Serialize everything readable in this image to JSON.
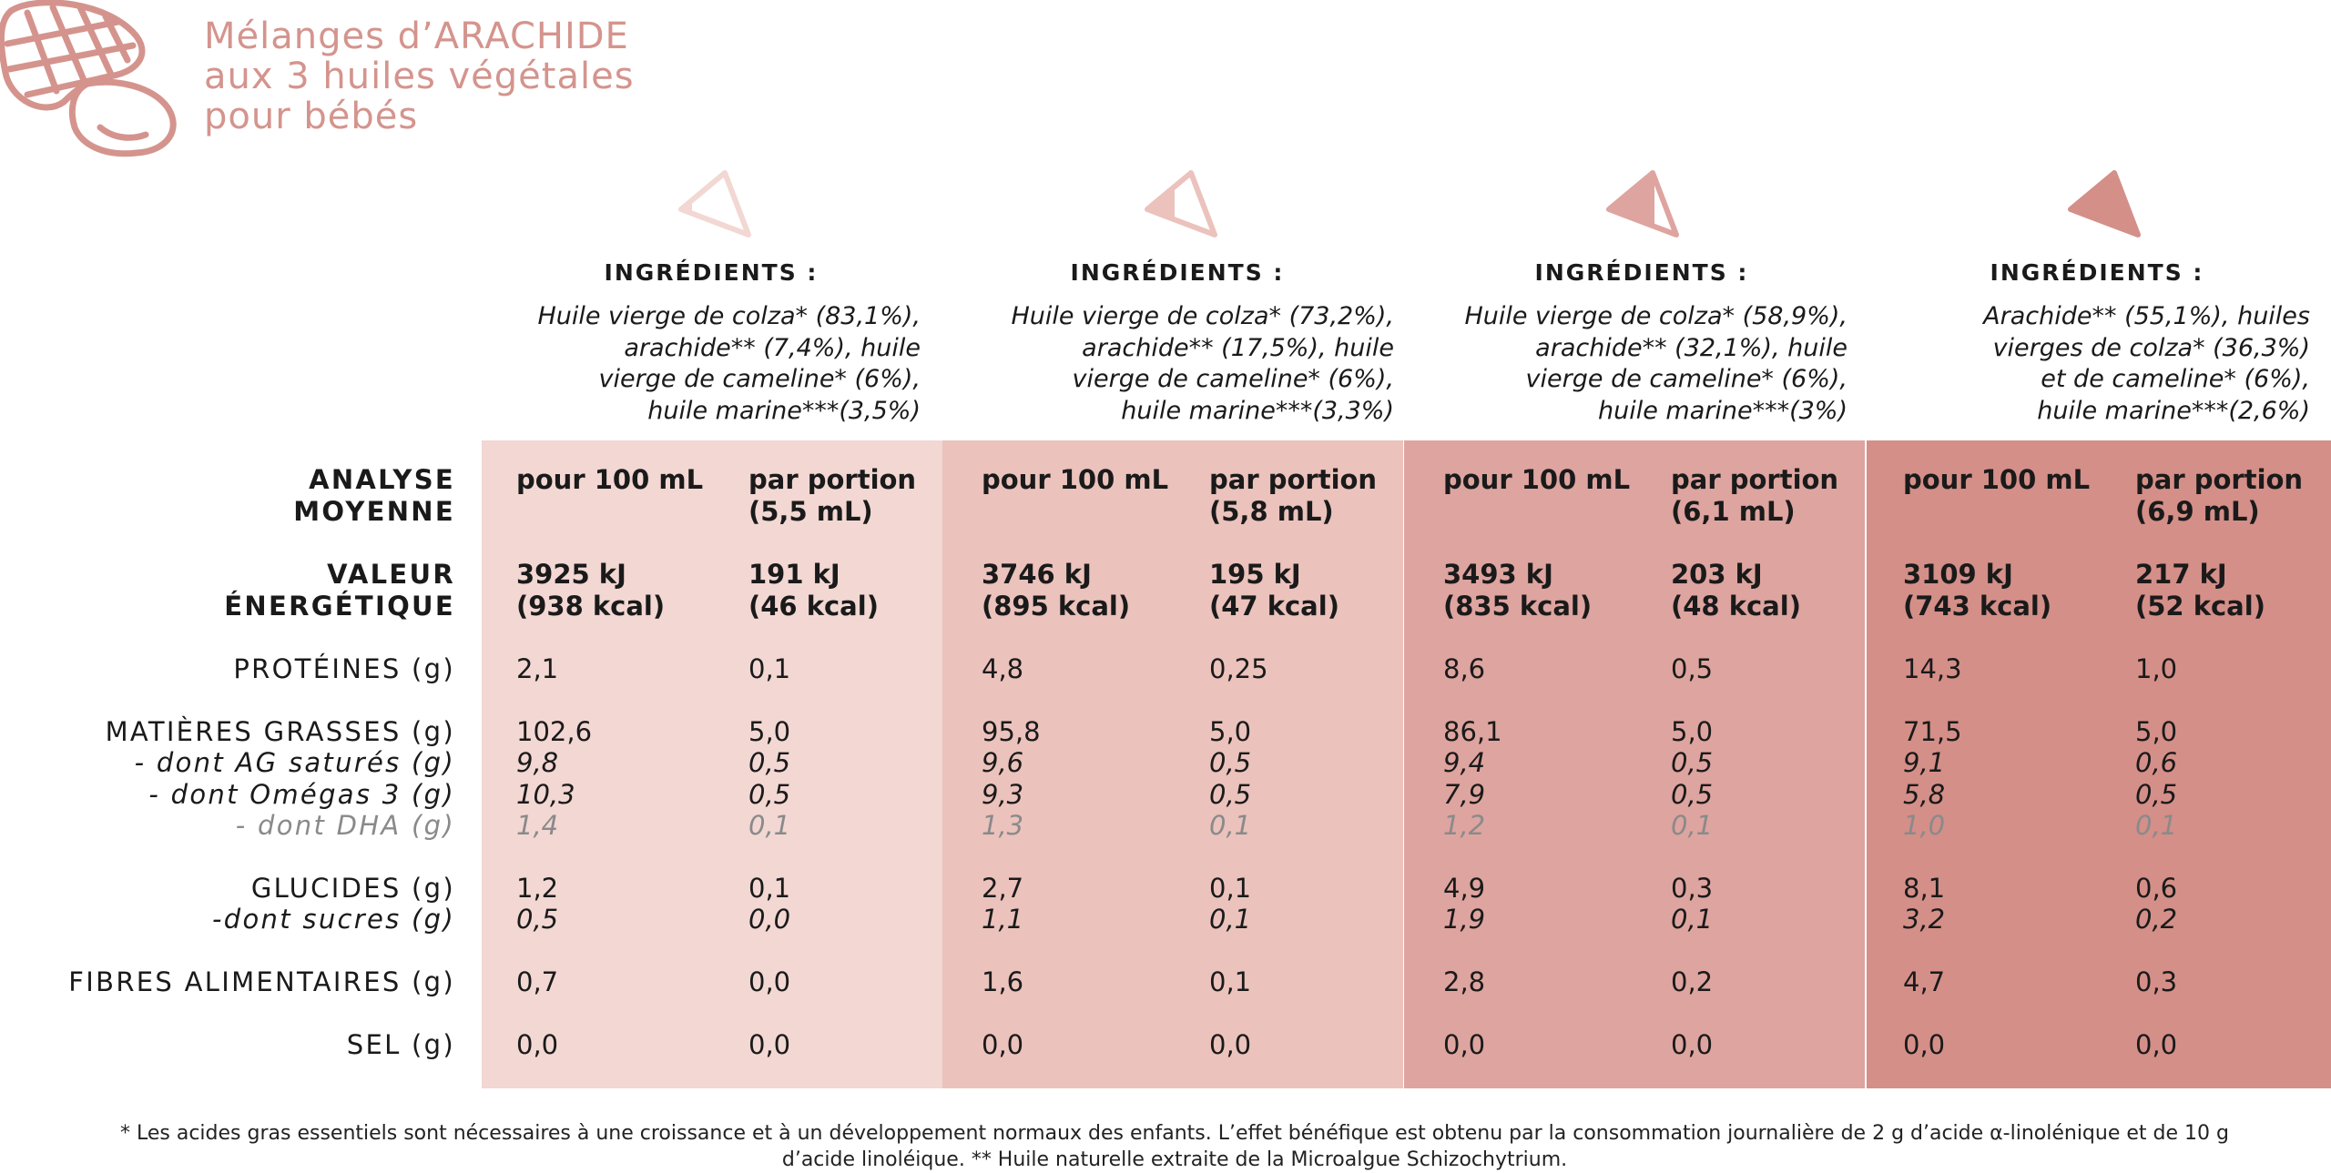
{
  "title": [
    "Mélanges d’ARACHIDE",
    "aux 3 huiles végétales",
    "pour bébés"
  ],
  "colors": {
    "accent": "#d4948d",
    "col1": "#f2d7d3",
    "col2": "#ebc2bc",
    "col3": "#dea49f",
    "col4": "#d48f88"
  },
  "icons": {
    "logo": "peanut-icon",
    "level": "triangle-fill-icon"
  },
  "fill_levels": [
    0.25,
    0.5,
    0.75,
    1.0
  ],
  "row_labels": {
    "analyse": [
      "ANALYSE",
      "MOYENNE"
    ],
    "valeur": [
      "VALEUR",
      "ÉNERGÉTIQUE"
    ],
    "proteines": "PROTÉINES (g)",
    "matieres": "MATIÈRES GRASSES (g)",
    "satures": "- dont AG saturés (g)",
    "omegas": "- dont Omégas 3 (g)",
    "dha": "- dont DHA (g)",
    "glucides": "GLUCIDES (g)",
    "sucres": "-dont sucres (g)",
    "fibres": "FIBRES ALIMENTAIRES (g)",
    "sel": "SEL (g)"
  },
  "products": [
    {
      "ing_header": "INGRÉDIENTS :",
      "ingredients": [
        "Huile vierge de colza* (83,1%),",
        "arachide** (7,4%), huile",
        "vierge de cameline* (6%),",
        "huile marine***(3,5%)"
      ],
      "head_100": "pour 100 mL",
      "head_portion": [
        "par portion",
        "(5,5 mL)"
      ],
      "v100": {
        "energy": [
          "3925 kJ",
          "(938 kcal)"
        ],
        "proteines": "2,1",
        "matieres": "102,6",
        "satures": "9,8",
        "omegas": "10,3",
        "dha": "1,4",
        "glucides": "1,2",
        "sucres": "0,5",
        "fibres": "0,7",
        "sel": "0,0"
      },
      "vport": {
        "energy": [
          "191 kJ",
          "(46 kcal)"
        ],
        "proteines": "0,1",
        "matieres": "5,0",
        "satures": "0,5",
        "omegas": "0,5",
        "dha": "0,1",
        "glucides": "0,1",
        "sucres": "0,0",
        "fibres": "0,0",
        "sel": "0,0"
      }
    },
    {
      "ing_header": "INGRÉDIENTS :",
      "ingredients": [
        "Huile vierge de colza* (73,2%),",
        "arachide** (17,5%), huile",
        "vierge de cameline* (6%),",
        "huile marine***(3,3%)"
      ],
      "head_100": "pour 100 mL",
      "head_portion": [
        "par portion",
        "(5,8 mL)"
      ],
      "v100": {
        "energy": [
          "3746 kJ",
          "(895 kcal)"
        ],
        "proteines": "4,8",
        "matieres": "95,8",
        "satures": "9,6",
        "omegas": "9,3",
        "dha": "1,3",
        "glucides": "2,7",
        "sucres": "1,1",
        "fibres": "1,6",
        "sel": "0,0"
      },
      "vport": {
        "energy": [
          "195 kJ",
          "(47 kcal)"
        ],
        "proteines": "0,25",
        "matieres": "5,0",
        "satures": "0,5",
        "omegas": "0,5",
        "dha": "0,1",
        "glucides": "0,1",
        "sucres": "0,1",
        "fibres": "0,1",
        "sel": "0,0"
      }
    },
    {
      "ing_header": "INGRÉDIENTS :",
      "ingredients": [
        "Huile vierge de colza* (58,9%),",
        "arachide** (32,1%), huile",
        "vierge de cameline* (6%),",
        "huile marine***(3%)"
      ],
      "head_100": "pour 100 mL",
      "head_portion": [
        "par portion",
        "(6,1 mL)"
      ],
      "v100": {
        "energy": [
          "3493 kJ",
          "(835 kcal)"
        ],
        "proteines": "8,6",
        "matieres": "86,1",
        "satures": "9,4",
        "omegas": "7,9",
        "dha": "1,2",
        "glucides": "4,9",
        "sucres": "1,9",
        "fibres": "2,8",
        "sel": "0,0"
      },
      "vport": {
        "energy": [
          "203 kJ",
          "(48 kcal)"
        ],
        "proteines": "0,5",
        "matieres": "5,0",
        "satures": "0,5",
        "omegas": "0,5",
        "dha": "0,1",
        "glucides": "0,3",
        "sucres": "0,1",
        "fibres": "0,2",
        "sel": "0,0"
      }
    },
    {
      "ing_header": "INGRÉDIENTS :",
      "ingredients": [
        "Arachide** (55,1%), huiles",
        "vierges de colza* (36,3%)",
        "et de cameline* (6%),",
        "huile marine***(2,6%)"
      ],
      "head_100": "pour 100 mL",
      "head_portion": [
        "par portion",
        "(6,9 mL)"
      ],
      "v100": {
        "energy": [
          "3109 kJ",
          "(743 kcal)"
        ],
        "proteines": "14,3",
        "matieres": "71,5",
        "satures": "9,1",
        "omegas": "5,8",
        "dha": "1,0",
        "glucides": "8,1",
        "sucres": "3,2",
        "fibres": "4,7",
        "sel": "0,0"
      },
      "vport": {
        "energy": [
          "217 kJ",
          "(52 kcal)"
        ],
        "proteines": "1,0",
        "matieres": "5,0",
        "satures": "0,6",
        "omegas": "0,5",
        "dha": "0,1",
        "glucides": "0,6",
        "sucres": "0,2",
        "fibres": "0,3",
        "sel": "0,0"
      }
    }
  ],
  "footnote": [
    "* Les acides gras essentiels sont nécessaires à une croissance et à un développement normaux des enfants. L’effet bénéfique est obtenu par la consommation journalière de 2 g d’acide α-linolénique et de 10 g",
    "d’acide linoléique. ** Huile naturelle extraite de la Microalgue Schizochytrium."
  ]
}
